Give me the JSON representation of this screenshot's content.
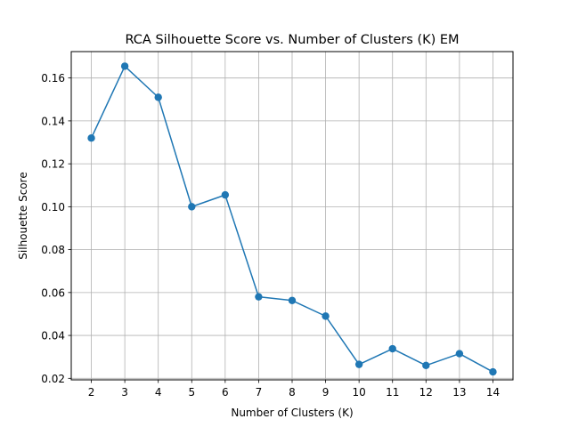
{
  "chart_data": {
    "type": "line",
    "title": "RCA Silhouette Score vs. Number of Clusters (K) EM",
    "xlabel": "Number of Clusters (K)",
    "ylabel": "Silhouette Score",
    "x": [
      2,
      3,
      4,
      5,
      6,
      7,
      8,
      9,
      10,
      11,
      12,
      13,
      14
    ],
    "series": [
      {
        "values": [
          0.132,
          0.1655,
          0.151,
          0.1,
          0.1055,
          0.058,
          0.0563,
          0.049,
          0.0265,
          0.0338,
          0.026,
          0.0315,
          0.023
        ]
      }
    ],
    "xlim": [
      1.4,
      14.6
    ],
    "ylim": [
      0.0193,
      0.1723
    ],
    "xticks": [
      2,
      3,
      4,
      5,
      6,
      7,
      8,
      9,
      10,
      11,
      12,
      13,
      14
    ],
    "yticks": [
      0.02,
      0.04,
      0.06,
      0.08,
      0.1,
      0.12,
      0.14,
      0.16
    ],
    "ytick_labels": [
      "0.02",
      "0.04",
      "0.06",
      "0.08",
      "0.10",
      "0.12",
      "0.14",
      "0.16"
    ],
    "grid": true,
    "legend": "none",
    "line_color": "#1f77b4",
    "grid_color": "#b0b0b0",
    "marker": "circle"
  }
}
